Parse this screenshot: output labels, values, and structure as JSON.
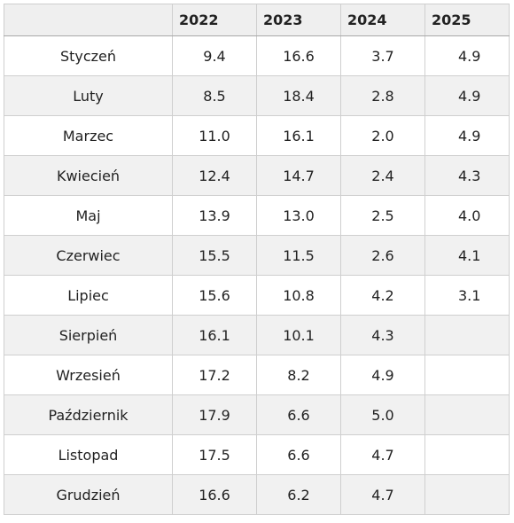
{
  "table": {
    "headers": [
      "",
      "2022",
      "2023",
      "2024",
      "2025"
    ],
    "rows": [
      {
        "month": "Styczeń",
        "v2022": "9.4",
        "v2023": "16.6",
        "v2024": "3.7",
        "v2025": "4.9"
      },
      {
        "month": "Luty",
        "v2022": "8.5",
        "v2023": "18.4",
        "v2024": "2.8",
        "v2025": "4.9"
      },
      {
        "month": "Marzec",
        "v2022": "11.0",
        "v2023": "16.1",
        "v2024": "2.0",
        "v2025": "4.9"
      },
      {
        "month": "Kwiecień",
        "v2022": "12.4",
        "v2023": "14.7",
        "v2024": "2.4",
        "v2025": "4.3"
      },
      {
        "month": "Maj",
        "v2022": "13.9",
        "v2023": "13.0",
        "v2024": "2.5",
        "v2025": "4.0"
      },
      {
        "month": "Czerwiec",
        "v2022": "15.5",
        "v2023": "11.5",
        "v2024": "2.6",
        "v2025": "4.1"
      },
      {
        "month": "Lipiec",
        "v2022": "15.6",
        "v2023": "10.8",
        "v2024": "4.2",
        "v2025": "3.1"
      },
      {
        "month": "Sierpień",
        "v2022": "16.1",
        "v2023": "10.1",
        "v2024": "4.3",
        "v2025": ""
      },
      {
        "month": "Wrzesień",
        "v2022": "17.2",
        "v2023": "8.2",
        "v2024": "4.9",
        "v2025": ""
      },
      {
        "month": "Październik",
        "v2022": "17.9",
        "v2023": "6.6",
        "v2024": "5.0",
        "v2025": ""
      },
      {
        "month": "Listopad",
        "v2022": "17.5",
        "v2023": "6.6",
        "v2024": "4.7",
        "v2025": ""
      },
      {
        "month": "Grudzień",
        "v2022": "16.6",
        "v2023": "6.2",
        "v2024": "4.7",
        "v2025": ""
      }
    ]
  }
}
